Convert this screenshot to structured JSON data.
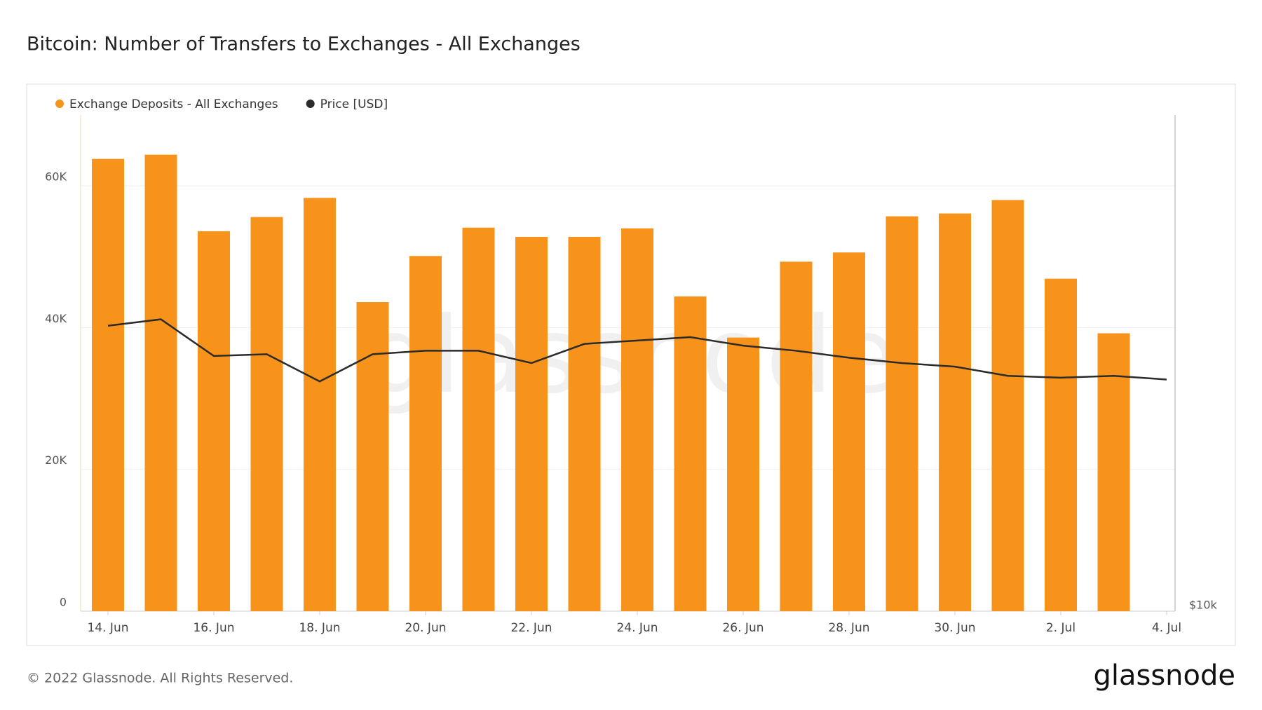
{
  "chart_data": {
    "type": "bar",
    "title": "Bitcoin: Number of Transfers to Exchanges - All Exchanges",
    "categories": [
      "14. Jun",
      null,
      "16. Jun",
      null,
      "18. Jun",
      null,
      "20. Jun",
      null,
      "22. Jun",
      null,
      "24. Jun",
      null,
      "26. Jun",
      null,
      "28. Jun",
      null,
      "30. Jun",
      null,
      "2. Jul",
      null,
      "4. Jul"
    ],
    "series": [
      {
        "name": "Exchange Deposits - All Exchanges",
        "color": "#f7931a",
        "type": "bar",
        "values": [
          63800,
          64400,
          53600,
          55600,
          58300,
          43600,
          50100,
          54100,
          52800,
          52800,
          54000,
          44400,
          38600,
          49300,
          50600,
          55700,
          56100,
          58000,
          46900,
          39200,
          null
        ]
      },
      {
        "name": "Price [USD]",
        "color": "#2b2b2b",
        "type": "line",
        "axis": "y2",
        "values": [
          22200,
          22600,
          20400,
          20500,
          19000,
          20500,
          20700,
          20700,
          20000,
          21100,
          21300,
          21500,
          21000,
          20700,
          20300,
          20000,
          19800,
          19300,
          19200,
          19300,
          19100
        ]
      }
    ],
    "ylim": [
      0,
      70000
    ],
    "yticks": [
      0,
      {
        "value": 20000,
        "label": "20K"
      },
      {
        "value": 40000,
        "label": "40K"
      },
      {
        "value": 60000,
        "label": "60K"
      }
    ],
    "y2lim": [
      10000,
      40000
    ],
    "y2_log": true,
    "y2ticks": [
      {
        "value": 10000,
        "label": "$10k"
      }
    ],
    "grid": true,
    "legend": "top-left",
    "watermark": "glassnode",
    "footer": "© 2022 Glassnode. All Rights Reserved.",
    "logo": "glassnode"
  }
}
